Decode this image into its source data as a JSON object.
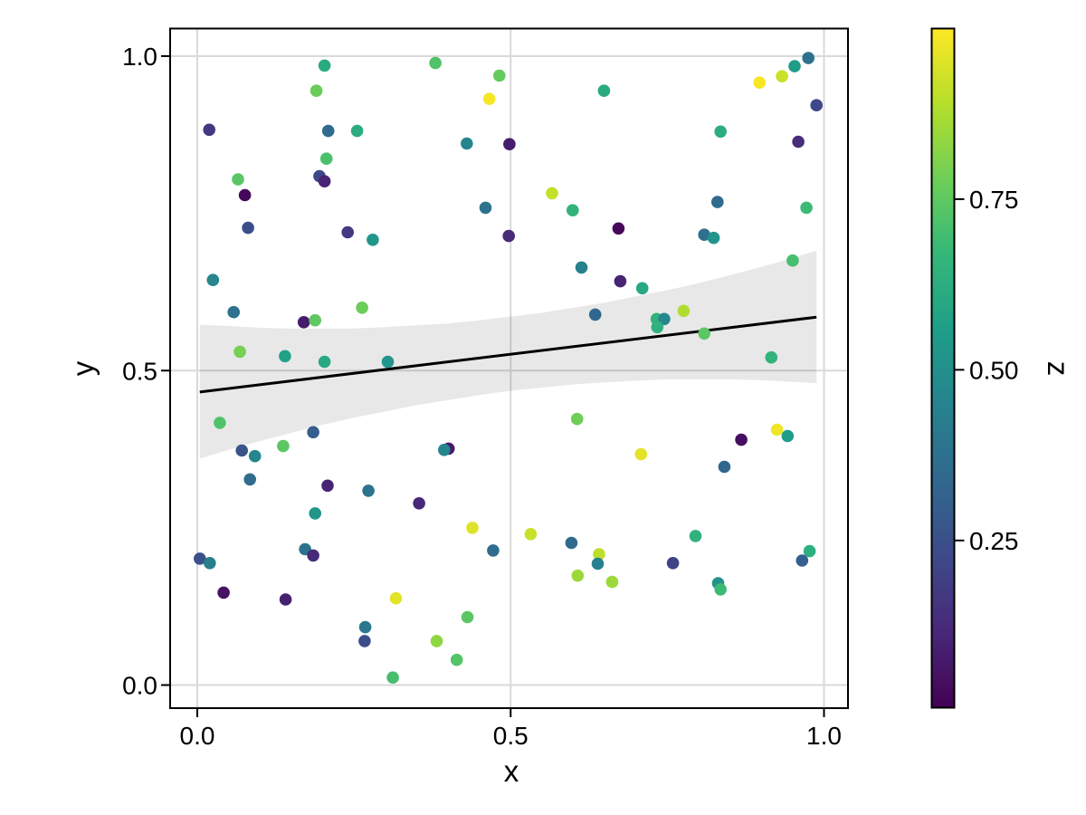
{
  "figure": {
    "background": "#ffffff"
  },
  "style": {
    "gridline_color": "#d9d9d9",
    "spine_color": "#000000",
    "band_color": "#000000",
    "band_opacity": 0.09,
    "line_color": "#000000",
    "point_radius": 6.8,
    "tick_length": 10
  },
  "chart_data": {
    "type": "scatter",
    "title": "",
    "xlabel": "x",
    "ylabel": "y",
    "zlabel": "z",
    "xlim": [
      -0.043,
      1.038
    ],
    "ylim": [
      -0.037,
      1.045
    ],
    "grid": true,
    "x_ticks": [
      {
        "value": 0.0,
        "label": "0.0"
      },
      {
        "value": 0.5,
        "label": "0.5"
      },
      {
        "value": 1.0,
        "label": "1.0"
      }
    ],
    "y_ticks": [
      {
        "value": 0.0,
        "label": "0.0"
      },
      {
        "value": 0.5,
        "label": "0.5"
      },
      {
        "value": 1.0,
        "label": "1.0"
      }
    ],
    "colorbar": {
      "label": "z",
      "min": 0.005,
      "max": 1.0,
      "colormap": "viridis",
      "ticks": [
        {
          "value": 0.75,
          "label": "0.75"
        },
        {
          "value": 0.5,
          "label": "0.50"
        },
        {
          "value": 0.25,
          "label": "0.25"
        }
      ]
    },
    "viridis_stops": [
      "#440154",
      "#482878",
      "#3e4989",
      "#31688e",
      "#26828e",
      "#1f9e89",
      "#35b779",
      "#6ece58",
      "#b5de2b",
      "#fde725"
    ],
    "regression": {
      "x_start": 0.004,
      "y_start": 0.466,
      "x_end": 0.988,
      "y_end": 0.585,
      "band": [
        {
          "x": 0.004,
          "lo": 0.36,
          "hi": 0.573
        },
        {
          "x": 0.05,
          "lo": 0.374,
          "hi": 0.571
        },
        {
          "x": 0.1,
          "lo": 0.388,
          "hi": 0.568
        },
        {
          "x": 0.15,
          "lo": 0.401,
          "hi": 0.567
        },
        {
          "x": 0.2,
          "lo": 0.414,
          "hi": 0.567
        },
        {
          "x": 0.25,
          "lo": 0.425,
          "hi": 0.567
        },
        {
          "x": 0.3,
          "lo": 0.435,
          "hi": 0.569
        },
        {
          "x": 0.35,
          "lo": 0.445,
          "hi": 0.572
        },
        {
          "x": 0.4,
          "lo": 0.453,
          "hi": 0.575
        },
        {
          "x": 0.45,
          "lo": 0.461,
          "hi": 0.58
        },
        {
          "x": 0.5,
          "lo": 0.468,
          "hi": 0.586
        },
        {
          "x": 0.55,
          "lo": 0.473,
          "hi": 0.592
        },
        {
          "x": 0.6,
          "lo": 0.478,
          "hi": 0.6
        },
        {
          "x": 0.65,
          "lo": 0.481,
          "hi": 0.608
        },
        {
          "x": 0.7,
          "lo": 0.484,
          "hi": 0.618
        },
        {
          "x": 0.75,
          "lo": 0.486,
          "hi": 0.628
        },
        {
          "x": 0.8,
          "lo": 0.486,
          "hi": 0.639
        },
        {
          "x": 0.85,
          "lo": 0.486,
          "hi": 0.652
        },
        {
          "x": 0.9,
          "lo": 0.485,
          "hi": 0.665
        },
        {
          "x": 0.95,
          "lo": 0.482,
          "hi": 0.679
        },
        {
          "x": 0.988,
          "lo": 0.48,
          "hi": 0.691
        }
      ]
    },
    "points": [
      [
        0.203,
        0.985,
        0.61
      ],
      [
        0.38,
        0.989,
        0.72
      ],
      [
        0.482,
        0.969,
        0.76
      ],
      [
        0.466,
        0.932,
        0.99
      ],
      [
        0.19,
        0.945,
        0.77
      ],
      [
        0.019,
        0.883,
        0.17
      ],
      [
        0.209,
        0.881,
        0.35
      ],
      [
        0.255,
        0.881,
        0.62
      ],
      [
        0.43,
        0.861,
        0.46
      ],
      [
        0.498,
        0.86,
        0.08
      ],
      [
        0.206,
        0.837,
        0.71
      ],
      [
        0.195,
        0.809,
        0.22
      ],
      [
        0.203,
        0.801,
        0.1
      ],
      [
        0.065,
        0.804,
        0.74
      ],
      [
        0.076,
        0.779,
        0.02
      ],
      [
        0.46,
        0.759,
        0.38
      ],
      [
        0.081,
        0.727,
        0.24
      ],
      [
        0.24,
        0.72,
        0.17
      ],
      [
        0.28,
        0.708,
        0.52
      ],
      [
        0.497,
        0.714,
        0.12
      ],
      [
        0.025,
        0.644,
        0.46
      ],
      [
        0.263,
        0.6,
        0.77
      ],
      [
        0.058,
        0.593,
        0.37
      ],
      [
        0.17,
        0.577,
        0.07
      ],
      [
        0.188,
        0.58,
        0.75
      ],
      [
        0.068,
        0.53,
        0.79
      ],
      [
        0.14,
        0.523,
        0.57
      ],
      [
        0.203,
        0.514,
        0.6
      ],
      [
        0.304,
        0.514,
        0.52
      ],
      [
        0.649,
        0.945,
        0.61
      ],
      [
        0.897,
        0.958,
        0.99
      ],
      [
        0.933,
        0.968,
        0.92
      ],
      [
        0.953,
        0.984,
        0.55
      ],
      [
        0.975,
        0.997,
        0.37
      ],
      [
        0.988,
        0.922,
        0.22
      ],
      [
        0.835,
        0.88,
        0.62
      ],
      [
        0.959,
        0.864,
        0.13
      ],
      [
        0.566,
        0.782,
        0.91
      ],
      [
        0.599,
        0.755,
        0.65
      ],
      [
        0.672,
        0.726,
        0.02
      ],
      [
        0.83,
        0.768,
        0.34
      ],
      [
        0.972,
        0.759,
        0.68
      ],
      [
        0.809,
        0.716,
        0.37
      ],
      [
        0.824,
        0.711,
        0.52
      ],
      [
        0.613,
        0.664,
        0.44
      ],
      [
        0.95,
        0.675,
        0.7
      ],
      [
        0.675,
        0.642,
        0.1
      ],
      [
        0.71,
        0.631,
        0.6
      ],
      [
        0.635,
        0.589,
        0.33
      ],
      [
        0.733,
        0.582,
        0.65
      ],
      [
        0.745,
        0.582,
        0.47
      ],
      [
        0.734,
        0.569,
        0.64
      ],
      [
        0.776,
        0.595,
        0.88
      ],
      [
        0.809,
        0.559,
        0.74
      ],
      [
        0.916,
        0.521,
        0.65
      ],
      [
        0.036,
        0.417,
        0.72
      ],
      [
        0.185,
        0.402,
        0.3
      ],
      [
        0.071,
        0.373,
        0.26
      ],
      [
        0.092,
        0.364,
        0.46
      ],
      [
        0.137,
        0.38,
        0.74
      ],
      [
        0.401,
        0.376,
        0.07
      ],
      [
        0.394,
        0.374,
        0.46
      ],
      [
        0.084,
        0.327,
        0.35
      ],
      [
        0.208,
        0.317,
        0.1
      ],
      [
        0.273,
        0.309,
        0.38
      ],
      [
        0.354,
        0.289,
        0.11
      ],
      [
        0.188,
        0.273,
        0.52
      ],
      [
        0.439,
        0.25,
        0.95
      ],
      [
        0.172,
        0.216,
        0.38
      ],
      [
        0.185,
        0.206,
        0.12
      ],
      [
        0.472,
        0.214,
        0.35
      ],
      [
        0.004,
        0.201,
        0.25
      ],
      [
        0.02,
        0.194,
        0.43
      ],
      [
        0.042,
        0.147,
        0.05
      ],
      [
        0.141,
        0.136,
        0.09
      ],
      [
        0.317,
        0.138,
        0.96
      ],
      [
        0.431,
        0.108,
        0.74
      ],
      [
        0.268,
        0.092,
        0.4
      ],
      [
        0.267,
        0.07,
        0.24
      ],
      [
        0.382,
        0.07,
        0.83
      ],
      [
        0.414,
        0.04,
        0.73
      ],
      [
        0.312,
        0.012,
        0.7
      ],
      [
        0.606,
        0.423,
        0.78
      ],
      [
        0.868,
        0.39,
        0.04
      ],
      [
        0.925,
        0.406,
        0.98
      ],
      [
        0.942,
        0.396,
        0.55
      ],
      [
        0.708,
        0.367,
        0.96
      ],
      [
        0.841,
        0.347,
        0.33
      ],
      [
        0.532,
        0.24,
        0.92
      ],
      [
        0.597,
        0.226,
        0.34
      ],
      [
        0.795,
        0.237,
        0.64
      ],
      [
        0.641,
        0.208,
        0.9
      ],
      [
        0.639,
        0.193,
        0.44
      ],
      [
        0.759,
        0.194,
        0.2
      ],
      [
        0.977,
        0.213,
        0.63
      ],
      [
        0.965,
        0.198,
        0.3
      ],
      [
        0.607,
        0.174,
        0.85
      ],
      [
        0.662,
        0.164,
        0.85
      ],
      [
        0.831,
        0.162,
        0.51
      ],
      [
        0.835,
        0.152,
        0.68
      ]
    ]
  }
}
